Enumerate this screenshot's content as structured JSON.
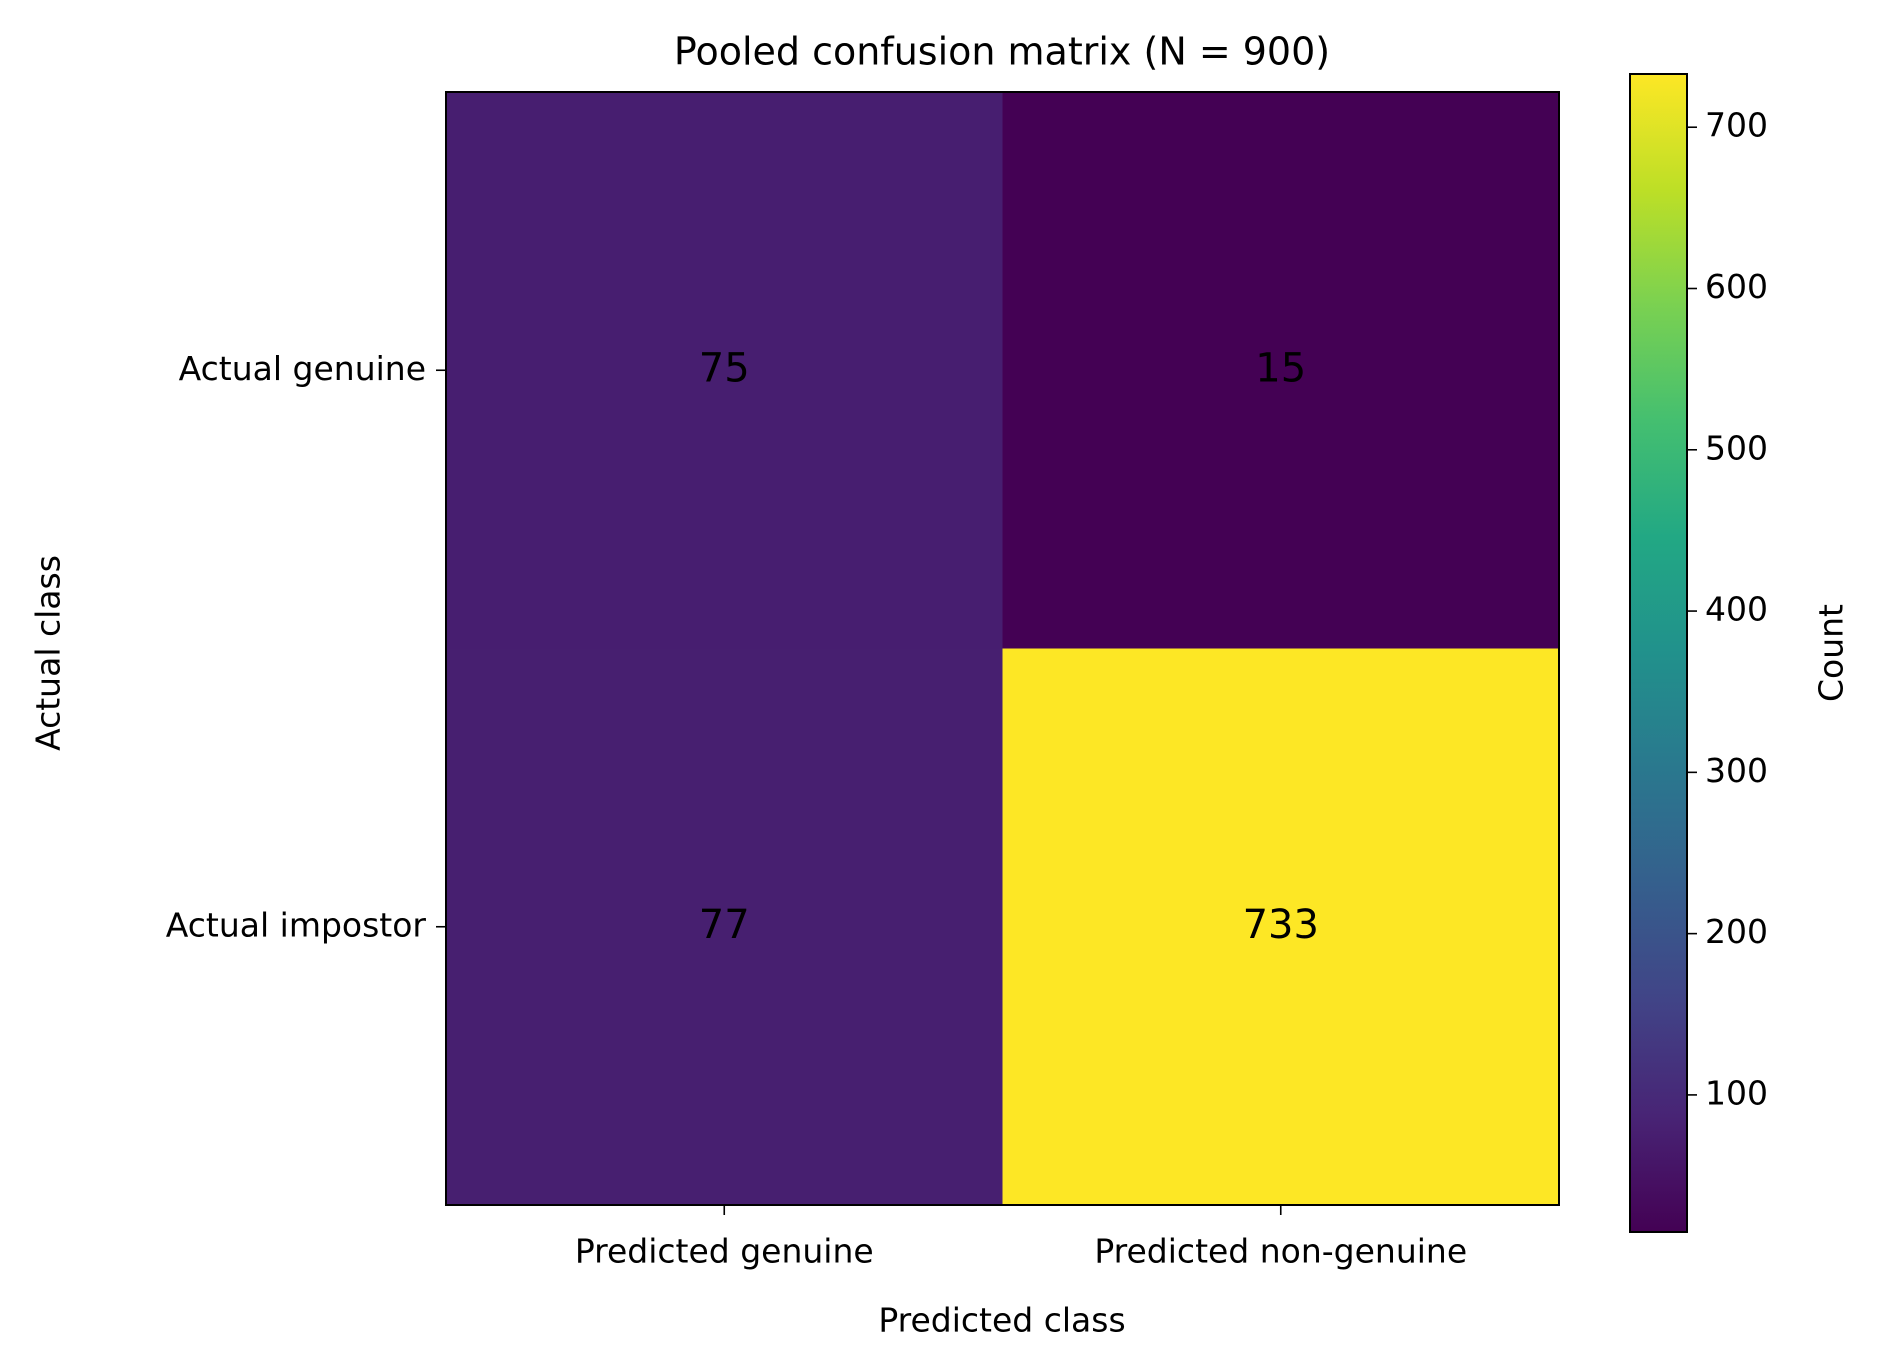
{
  "chart_data": {
    "type": "heatmap",
    "title": "Pooled confusion matrix (N = 900)",
    "x_label": "Predicted class",
    "y_label": "Actual class",
    "colorbar_label": "Count",
    "x_categories": [
      "Predicted genuine",
      "Predicted non-genuine"
    ],
    "y_categories": [
      "Actual genuine",
      "Actual impostor"
    ],
    "values": [
      [
        75,
        15
      ],
      [
        77,
        733
      ]
    ],
    "colormap": "viridis",
    "clim": [
      15,
      733
    ],
    "cticks": [
      100,
      200,
      300,
      400,
      500,
      600,
      700
    ]
  }
}
